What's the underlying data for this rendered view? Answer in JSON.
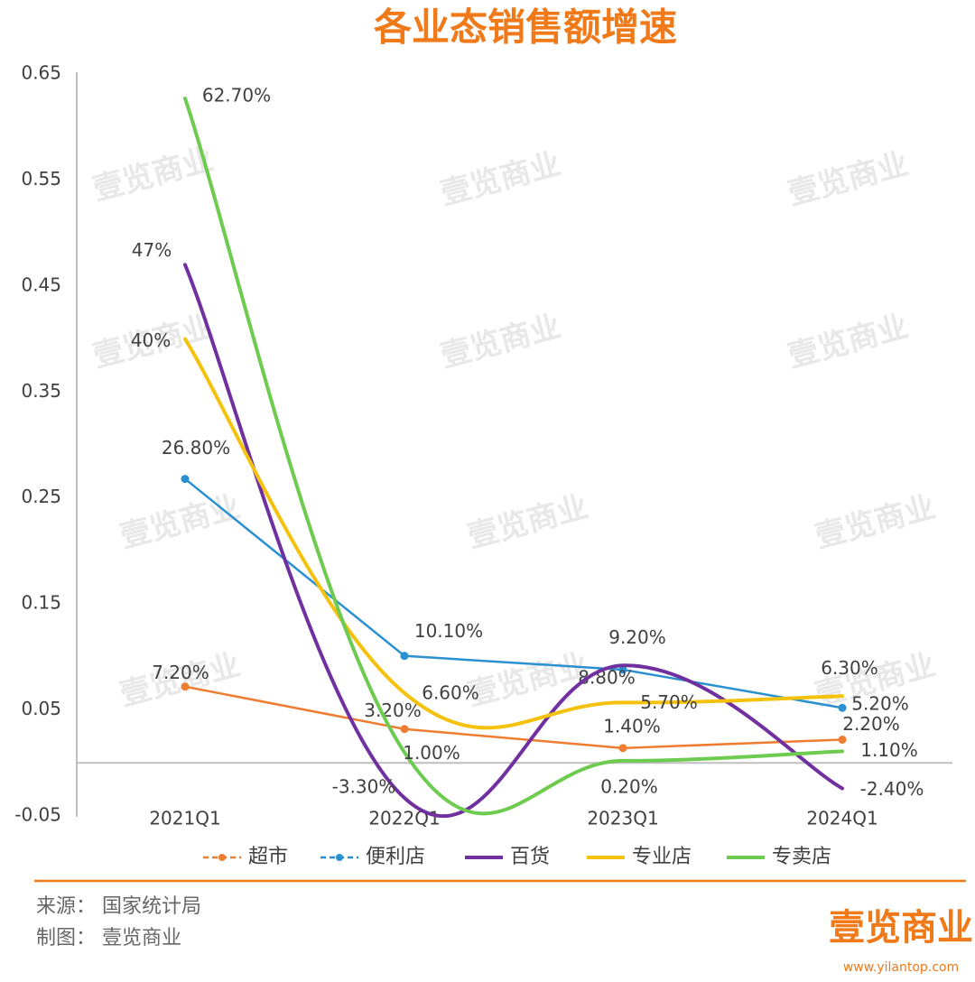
{
  "chart_data": {
    "type": "line",
    "title": "各业态销售额增速",
    "categories": [
      "2021Q1",
      "2022Q1",
      "2023Q1",
      "2024Q1"
    ],
    "series": [
      {
        "name": "超市",
        "color": "#ee7d31",
        "smooth": false,
        "markers": true,
        "values": [
          0.072,
          0.032,
          0.014,
          0.022
        ],
        "value_labels": [
          "7.20%",
          "3.20%",
          "1.40%",
          "2.20%"
        ]
      },
      {
        "name": "便利店",
        "color": "#2a90d0",
        "smooth": false,
        "markers": true,
        "values": [
          0.268,
          0.101,
          0.088,
          0.052
        ],
        "value_labels": [
          "26.80%",
          "10.10%",
          "8.80%",
          "5.20%"
        ]
      },
      {
        "name": "百货",
        "color": "#7030a0",
        "smooth": true,
        "markers": false,
        "values": [
          0.47,
          -0.033,
          0.092,
          -0.024
        ],
        "value_labels": [
          "47%",
          "-3.30%",
          "9.20%",
          "-2.40%"
        ]
      },
      {
        "name": "专业店",
        "color": "#f4c20d",
        "smooth": true,
        "markers": false,
        "values": [
          0.4,
          0.066,
          0.057,
          0.063
        ],
        "value_labels": [
          "40%",
          "6.60%",
          "5.70%",
          "6.30%"
        ]
      },
      {
        "name": "专卖店",
        "color": "#6dcb4f",
        "smooth": true,
        "markers": false,
        "values": [
          0.627,
          0.01,
          0.002,
          0.011
        ],
        "value_labels": [
          "62.70%",
          "1.00%",
          "0.20%",
          "1.10%"
        ]
      }
    ],
    "ylim": [
      -0.05,
      0.65
    ],
    "yticks": [
      -0.05,
      0.05,
      0.15,
      0.25,
      0.35,
      0.45,
      0.55,
      0.65
    ],
    "grid": false,
    "legend": "bottom",
    "watermark": "壹览商业"
  },
  "footer": {
    "source": "来源： 国家统计局",
    "maker": "制图： 壹览商业",
    "logo": "壹览商业",
    "url": "www.yilantop.com"
  }
}
